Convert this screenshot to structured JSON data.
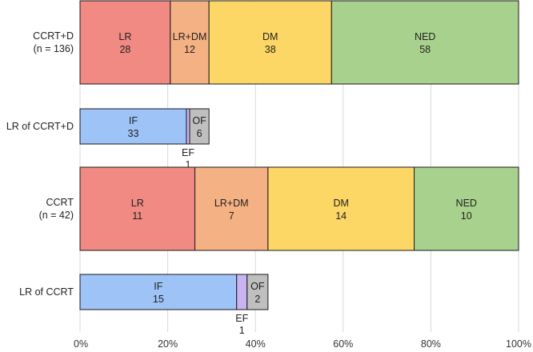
{
  "chart_data": {
    "type": "bar",
    "orientation": "horizontal",
    "stacked": true,
    "percent_scale": true,
    "x_ticks": [
      "0%",
      "20%",
      "40%",
      "60%",
      "80%",
      "100%"
    ],
    "xlim": [
      0,
      100
    ],
    "grid": true,
    "rows": [
      {
        "label": [
          "CCRT+D",
          "(n = 136)"
        ],
        "thickness": "large",
        "segments": [
          {
            "name": "LR",
            "count": 28,
            "color": "#f08a83"
          },
          {
            "name": "LR+DM",
            "count": 12,
            "color": "#f4b183"
          },
          {
            "name": "DM",
            "count": 38,
            "color": "#fcd766"
          },
          {
            "name": "NED",
            "count": 58,
            "color": "#a9d18e"
          }
        ]
      },
      {
        "label": [
          "LR of CCRT+D"
        ],
        "thickness": "small",
        "scale_total": 136,
        "segments": [
          {
            "name": "IF",
            "count": 33,
            "color": "#9dc3f7"
          },
          {
            "name": "EF",
            "count": 1,
            "color": "#c9b3f0",
            "label_position": "below"
          },
          {
            "name": "OF",
            "count": 6,
            "color": "#bfbfbf"
          }
        ]
      },
      {
        "label": [
          "CCRT",
          "(n = 42)"
        ],
        "thickness": "large",
        "segments": [
          {
            "name": "LR",
            "count": 11,
            "color": "#f08a83"
          },
          {
            "name": "LR+DM",
            "count": 7,
            "color": "#f4b183"
          },
          {
            "name": "DM",
            "count": 14,
            "color": "#fcd766"
          },
          {
            "name": "NED",
            "count": 10,
            "color": "#a9d18e"
          }
        ]
      },
      {
        "label": [
          "LR of CCRT"
        ],
        "thickness": "small",
        "scale_total": 42,
        "segments": [
          {
            "name": "IF",
            "count": 15,
            "color": "#9dc3f7"
          },
          {
            "name": "EF",
            "count": 1,
            "color": "#c9b3f0",
            "label_position": "below"
          },
          {
            "name": "OF",
            "count": 2,
            "color": "#bfbfbf"
          }
        ]
      }
    ]
  }
}
